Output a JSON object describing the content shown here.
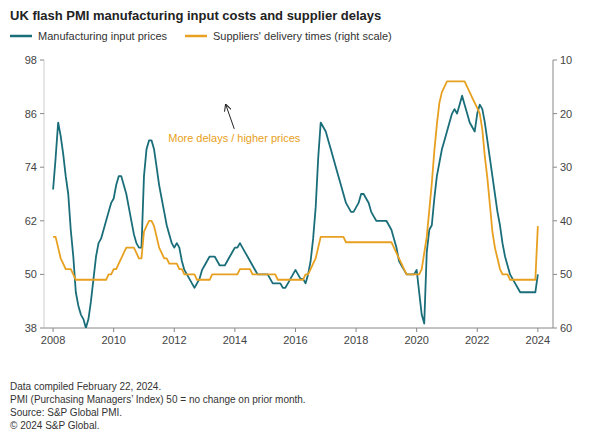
{
  "chart_data": {
    "type": "line",
    "title": "UK flash PMI manufacturing input costs and supplier delays",
    "x": [
      2008.0,
      2008.083,
      2008.167,
      2008.25,
      2008.333,
      2008.417,
      2008.5,
      2008.583,
      2008.667,
      2008.75,
      2008.833,
      2008.917,
      2009.0,
      2009.083,
      2009.167,
      2009.25,
      2009.333,
      2009.417,
      2009.5,
      2009.583,
      2009.667,
      2009.75,
      2009.833,
      2009.917,
      2010.0,
      2010.083,
      2010.167,
      2010.25,
      2010.333,
      2010.417,
      2010.5,
      2010.583,
      2010.667,
      2010.75,
      2010.833,
      2010.917,
      2011.0,
      2011.083,
      2011.167,
      2011.25,
      2011.333,
      2011.417,
      2011.5,
      2011.583,
      2011.667,
      2011.75,
      2011.833,
      2011.917,
      2012.0,
      2012.083,
      2012.167,
      2012.25,
      2012.333,
      2012.417,
      2012.5,
      2012.583,
      2012.667,
      2012.75,
      2012.833,
      2012.917,
      2013.0,
      2013.083,
      2013.167,
      2013.25,
      2013.333,
      2013.417,
      2013.5,
      2013.583,
      2013.667,
      2013.75,
      2013.833,
      2013.917,
      2014.0,
      2014.083,
      2014.167,
      2014.25,
      2014.333,
      2014.417,
      2014.5,
      2014.583,
      2014.667,
      2014.75,
      2014.833,
      2014.917,
      2015.0,
      2015.083,
      2015.167,
      2015.25,
      2015.333,
      2015.417,
      2015.5,
      2015.583,
      2015.667,
      2015.75,
      2015.833,
      2015.917,
      2016.0,
      2016.083,
      2016.167,
      2016.25,
      2016.333,
      2016.417,
      2016.5,
      2016.583,
      2016.667,
      2016.75,
      2016.833,
      2016.917,
      2017.0,
      2017.083,
      2017.167,
      2017.25,
      2017.333,
      2017.417,
      2017.5,
      2017.583,
      2017.667,
      2017.75,
      2017.833,
      2017.917,
      2018.0,
      2018.083,
      2018.167,
      2018.25,
      2018.333,
      2018.417,
      2018.5,
      2018.583,
      2018.667,
      2018.75,
      2018.833,
      2018.917,
      2019.0,
      2019.083,
      2019.167,
      2019.25,
      2019.333,
      2019.417,
      2019.5,
      2019.583,
      2019.667,
      2019.75,
      2019.833,
      2019.917,
      2020.0,
      2020.083,
      2020.167,
      2020.25,
      2020.333,
      2020.417,
      2020.5,
      2020.583,
      2020.667,
      2020.75,
      2020.833,
      2020.917,
      2021.0,
      2021.083,
      2021.167,
      2021.25,
      2021.333,
      2021.417,
      2021.5,
      2021.583,
      2021.667,
      2021.75,
      2021.833,
      2021.917,
      2022.0,
      2022.083,
      2022.167,
      2022.25,
      2022.333,
      2022.417,
      2022.5,
      2022.583,
      2022.667,
      2022.75,
      2022.833,
      2022.917,
      2023.0,
      2023.083,
      2023.167,
      2023.25,
      2023.333,
      2023.417,
      2023.5,
      2023.583,
      2023.667,
      2023.75,
      2023.833,
      2023.917,
      2024.0
    ],
    "series": [
      {
        "name": "Manufacturing input prices",
        "color": "#1a6e7a",
        "values": [
          69,
          76,
          84,
          81,
          77,
          72,
          68,
          60,
          54,
          46,
          43,
          41,
          40,
          38,
          40,
          44,
          49,
          54,
          57,
          58,
          60,
          62,
          64,
          66,
          67,
          70,
          72,
          72,
          70,
          68,
          65,
          62,
          59,
          57,
          56,
          56,
          72,
          78,
          80,
          80,
          78,
          74,
          70,
          67,
          64,
          61,
          59,
          57,
          56,
          57,
          56,
          53,
          51,
          50,
          49,
          48,
          47,
          48,
          49,
          51,
          52,
          53,
          54,
          54,
          54,
          53,
          52,
          52,
          52,
          53,
          54,
          55,
          56,
          56,
          57,
          56,
          55,
          54,
          53,
          52,
          51,
          50,
          50,
          50,
          50,
          50,
          49,
          48,
          48,
          48,
          48,
          47,
          47,
          48,
          49,
          50,
          51,
          50,
          49,
          49,
          48,
          50,
          53,
          58,
          65,
          76,
          84,
          83,
          82,
          80,
          78,
          76,
          74,
          72,
          70,
          68,
          66,
          65,
          64,
          64,
          65,
          66,
          68,
          68,
          67,
          66,
          64,
          63,
          62,
          62,
          62,
          62,
          62,
          61,
          60,
          58,
          56,
          53,
          52,
          51,
          50,
          50,
          50,
          50,
          51,
          46,
          41,
          39,
          55,
          60,
          61,
          67,
          72,
          75,
          78,
          80,
          82,
          84,
          86,
          87,
          86,
          88,
          90,
          88,
          86,
          84,
          83,
          82,
          86,
          88,
          87,
          84,
          80,
          76,
          72,
          68,
          64,
          61,
          57,
          54,
          52,
          50,
          49,
          48,
          47,
          46,
          46,
          46,
          46,
          46,
          46,
          46,
          50
        ]
      },
      {
        "name": "Suppliers' delivery times (right scale)",
        "color": "#e8a020",
        "axis": "y2",
        "values": [
          43,
          43,
          45,
          47,
          48,
          49,
          49,
          49,
          50,
          51,
          51,
          51,
          51,
          51,
          51,
          51,
          51,
          51,
          51,
          51,
          51,
          51,
          50,
          50,
          49,
          49,
          48,
          47,
          46,
          45,
          45,
          45,
          45,
          46,
          47,
          47,
          42,
          41,
          40,
          40,
          41,
          43,
          45,
          46,
          47,
          47,
          48,
          48,
          48,
          48,
          49,
          49,
          50,
          50,
          50,
          50,
          50,
          51,
          51,
          51,
          51,
          51,
          51,
          50,
          50,
          50,
          50,
          50,
          50,
          50,
          50,
          50,
          50,
          50,
          49,
          49,
          49,
          49,
          49,
          50,
          50,
          50,
          50,
          50,
          50,
          50,
          50,
          50,
          50,
          51,
          51,
          51,
          51,
          51,
          51,
          51,
          51,
          51,
          51,
          51,
          50,
          50,
          49,
          48,
          47,
          45,
          43,
          43,
          43,
          43,
          43,
          43,
          43,
          43,
          43,
          43,
          44,
          44,
          44,
          44,
          44,
          44,
          44,
          44,
          44,
          44,
          44,
          44,
          44,
          44,
          44,
          44,
          44,
          44,
          44,
          45,
          46,
          47,
          48,
          49,
          50,
          50,
          50,
          50,
          50,
          50,
          49,
          46,
          43,
          38,
          33,
          27,
          22,
          18,
          16,
          15,
          14,
          14,
          14,
          14,
          14,
          14,
          14,
          14,
          15,
          16,
          17,
          18,
          19,
          20,
          23,
          28,
          32,
          37,
          42,
          45,
          47,
          49,
          50,
          50,
          50,
          51,
          51,
          51,
          51,
          51,
          51,
          51,
          51,
          51,
          51,
          51,
          41
        ]
      }
    ],
    "xlim": [
      2007.7,
      2024.5
    ],
    "xticks": [
      2008,
      2010,
      2012,
      2014,
      2016,
      2018,
      2020,
      2022,
      2024
    ],
    "ylim": [
      38,
      98
    ],
    "yticks": [
      38,
      50,
      62,
      74,
      86,
      98
    ],
    "y2lim": [
      60,
      10
    ],
    "y2ticks": [
      60,
      50,
      40,
      30,
      20,
      10
    ],
    "grid": false,
    "legend": "upper left",
    "annotations": [
      {
        "text": "More delays / higher prices",
        "color": "#e8a020",
        "x": 2011.8,
        "y": 79,
        "arrow_x": 2013.7,
        "arrow_y": 88
      }
    ],
    "footnotes": [
      "Data compiled February 22, 2024.",
      "PMI (Purchasing Managers’ Index) 50 = no change on prior month.",
      "Source: S&P Global PMI.",
      "© 2024 S&P Global."
    ]
  }
}
